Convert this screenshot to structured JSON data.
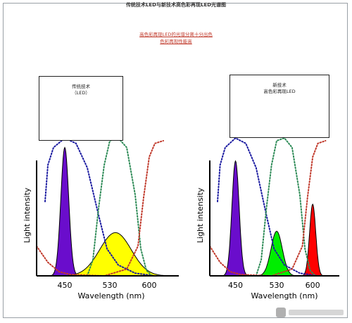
{
  "page": {
    "title": "传统技术LED与新技术高色彩再现LED光谱图",
    "subtitle_lines": [
      "高色彩再现LED的光谱分离十分出色",
      "色彩再现性能高"
    ]
  },
  "chart_data": [
    {
      "type": "area",
      "box_lines": [
        "传统技术",
        "（LED）"
      ],
      "xlabel": "Wavelength (nm)",
      "ylabel": "Light intensity",
      "xticks": [
        450,
        530,
        600
      ],
      "xlim": [
        400,
        660
      ],
      "ylim": [
        0,
        1
      ],
      "series": [
        {
          "kind": "emission",
          "center": 450,
          "sigma": 7,
          "peak": 0.95,
          "color": "#6a0dcc"
        },
        {
          "kind": "emission",
          "center": 540,
          "sigma": 28,
          "peak": 0.32,
          "color": "#ffff00"
        }
      ],
      "filters": [
        {
          "color": "#1a1aa0",
          "points": [
            [
              415,
              0.55
            ],
            [
              420,
              0.82
            ],
            [
              430,
              0.95
            ],
            [
              450,
              1.02
            ],
            [
              470,
              0.98
            ],
            [
              490,
              0.8
            ],
            [
              510,
              0.45
            ],
            [
              525,
              0.2
            ],
            [
              545,
              0.08
            ],
            [
              575,
              0.02
            ],
            [
              610,
              0.0
            ]
          ]
        },
        {
          "color": "#2e8b57",
          "points": [
            [
              490,
              0.0
            ],
            [
              500,
              0.12
            ],
            [
              510,
              0.5
            ],
            [
              520,
              0.82
            ],
            [
              530,
              1.0
            ],
            [
              545,
              1.02
            ],
            [
              560,
              0.95
            ],
            [
              575,
              0.6
            ],
            [
              585,
              0.2
            ],
            [
              595,
              0.04
            ],
            [
              605,
              0.0
            ]
          ]
        },
        {
          "color": "#c0392b",
          "points": [
            [
              400,
              0.22
            ],
            [
              420,
              0.1
            ],
            [
              440,
              0.03
            ],
            [
              460,
              0.01
            ],
            [
              520,
              0.0
            ],
            [
              560,
              0.05
            ],
            [
              580,
              0.22
            ],
            [
              590,
              0.58
            ],
            [
              600,
              0.88
            ],
            [
              610,
              0.98
            ],
            [
              625,
              1.0
            ]
          ]
        }
      ]
    },
    {
      "type": "area",
      "box_lines": [
        "新技术",
        "高色彩再现LED"
      ],
      "xlabel": "Wavelength (nm)",
      "ylabel": "Light intensity",
      "xticks": [
        450,
        530,
        600
      ],
      "xlim": [
        400,
        660
      ],
      "ylim": [
        0,
        1
      ],
      "series": [
        {
          "kind": "emission",
          "center": 450,
          "sigma": 7,
          "peak": 0.85,
          "color": "#6a0dcc"
        },
        {
          "kind": "emission",
          "center": 530,
          "sigma": 11,
          "peak": 0.33,
          "color": "#00ee00"
        },
        {
          "kind": "emission",
          "center": 600,
          "sigma": 6,
          "peak": 0.53,
          "color": "#ff0000"
        }
      ],
      "filters": [
        {
          "color": "#1a1aa0",
          "points": [
            [
              415,
              0.55
            ],
            [
              420,
              0.82
            ],
            [
              430,
              0.95
            ],
            [
              450,
              1.02
            ],
            [
              470,
              0.98
            ],
            [
              490,
              0.8
            ],
            [
              510,
              0.45
            ],
            [
              525,
              0.2
            ],
            [
              545,
              0.08
            ],
            [
              575,
              0.02
            ],
            [
              610,
              0.0
            ]
          ]
        },
        {
          "color": "#2e8b57",
          "points": [
            [
              490,
              0.0
            ],
            [
              500,
              0.12
            ],
            [
              510,
              0.5
            ],
            [
              520,
              0.82
            ],
            [
              530,
              1.0
            ],
            [
              545,
              1.02
            ],
            [
              560,
              0.95
            ],
            [
              575,
              0.6
            ],
            [
              585,
              0.2
            ],
            [
              595,
              0.04
            ],
            [
              605,
              0.0
            ]
          ]
        },
        {
          "color": "#c0392b",
          "points": [
            [
              400,
              0.22
            ],
            [
              420,
              0.1
            ],
            [
              440,
              0.03
            ],
            [
              460,
              0.01
            ],
            [
              520,
              0.0
            ],
            [
              560,
              0.05
            ],
            [
              580,
              0.22
            ],
            [
              590,
              0.58
            ],
            [
              600,
              0.88
            ],
            [
              610,
              0.98
            ],
            [
              625,
              1.0
            ]
          ]
        }
      ]
    }
  ]
}
